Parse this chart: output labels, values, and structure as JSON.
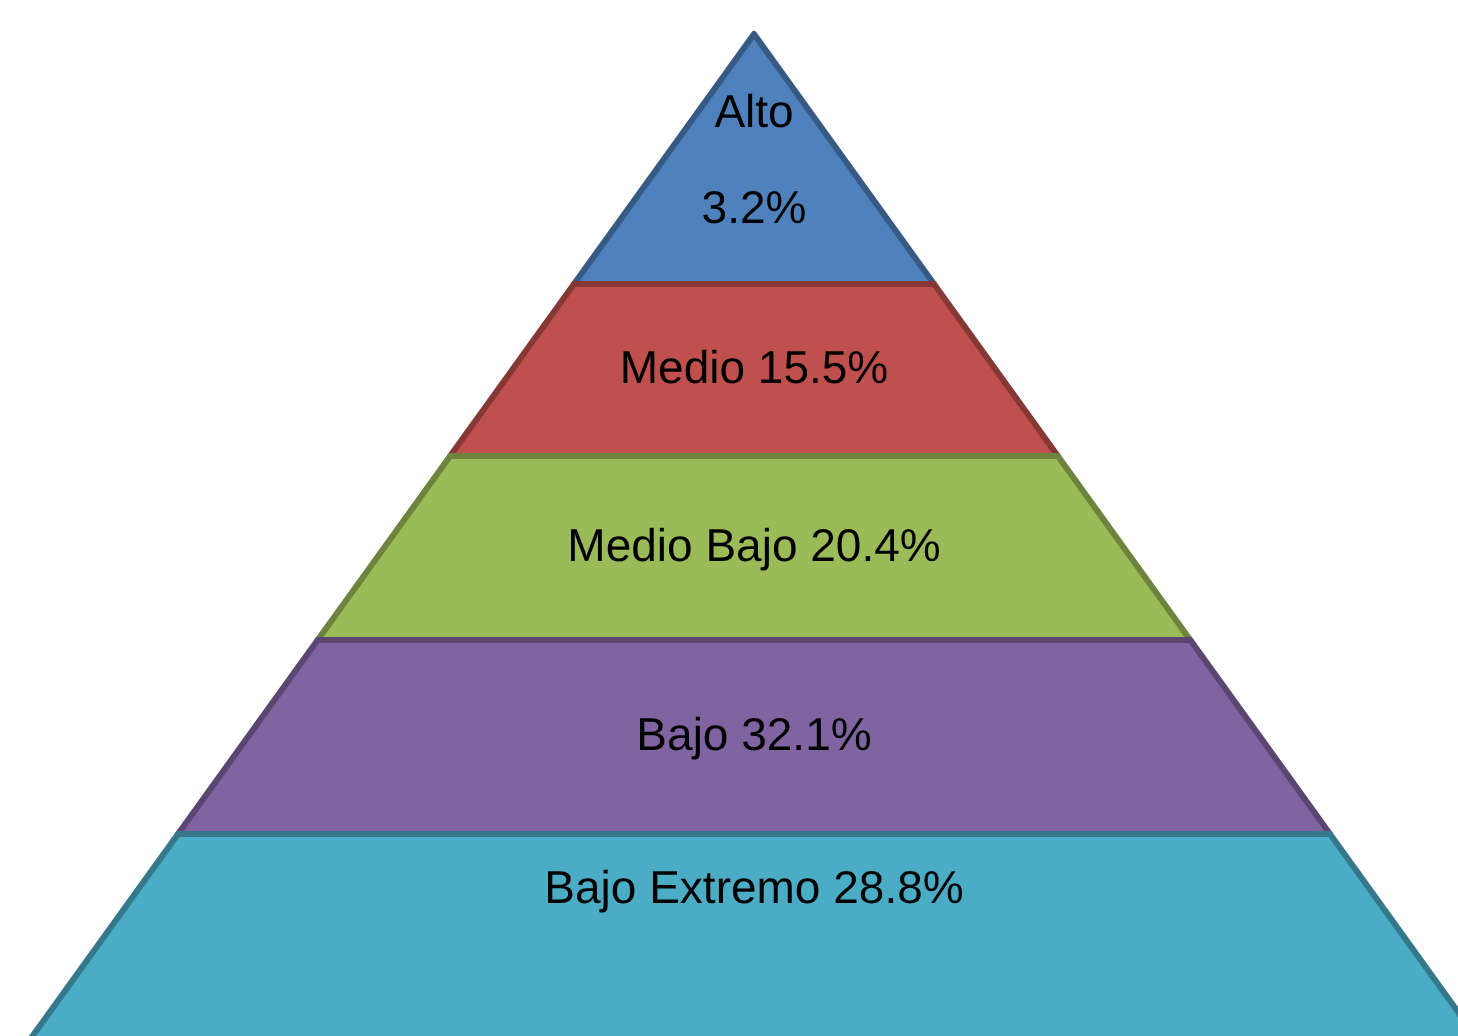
{
  "chart_data": {
    "type": "other",
    "categories": [
      "Alto",
      "Medio",
      "Medio Bajo",
      "Bajo",
      "Bajo Extremo"
    ],
    "values": [
      3.2,
      15.5,
      20.4,
      32.1,
      28.8
    ],
    "value_labels": [
      "3.2%",
      "15.5%",
      "20.4%",
      "32.1%",
      "28.8%"
    ],
    "colors": [
      "#4f81bd",
      "#c0504d",
      "#9bbb59",
      "#8064a2",
      "#4bacc6"
    ]
  }
}
